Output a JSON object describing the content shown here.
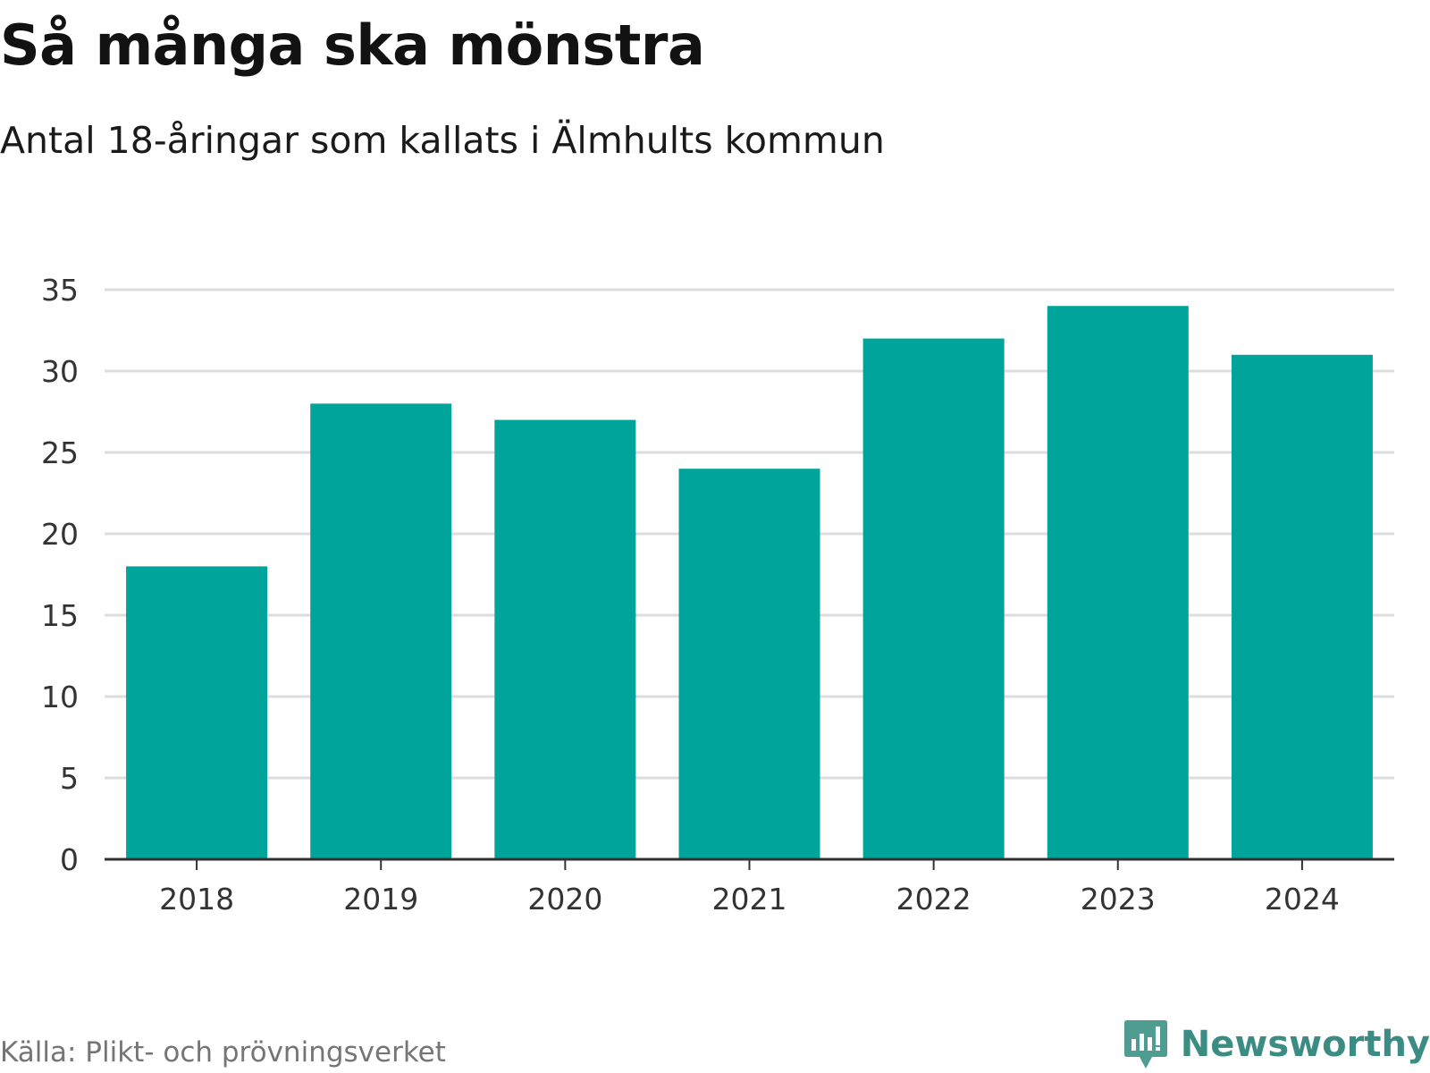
{
  "header": {
    "title": "Så många ska mönstra",
    "subtitle": "Antal 18-åringar som kallats i Älmhults kommun"
  },
  "footer": {
    "source": "Källa: Plikt- och prövningsverket",
    "brand_name": "Newsworthy",
    "brand_icon": "newsworthy-logo-icon"
  },
  "colors": {
    "bar": "#00a49a",
    "gridline": "#dddddd",
    "axis": "#333333",
    "brand": "#3b8c83"
  },
  "chart_data": {
    "type": "bar",
    "title": "Så många ska mönstra",
    "subtitle": "Antal 18-åringar som kallats i Älmhults kommun",
    "categories": [
      "2018",
      "2019",
      "2020",
      "2021",
      "2022",
      "2023",
      "2024"
    ],
    "values": [
      18,
      28,
      27,
      24,
      32,
      34,
      31
    ],
    "xlabel": "",
    "ylabel": "",
    "ylim": [
      0,
      35
    ],
    "yticks": [
      0,
      5,
      10,
      15,
      20,
      25,
      30,
      35
    ],
    "grid": true,
    "legend": "none"
  }
}
